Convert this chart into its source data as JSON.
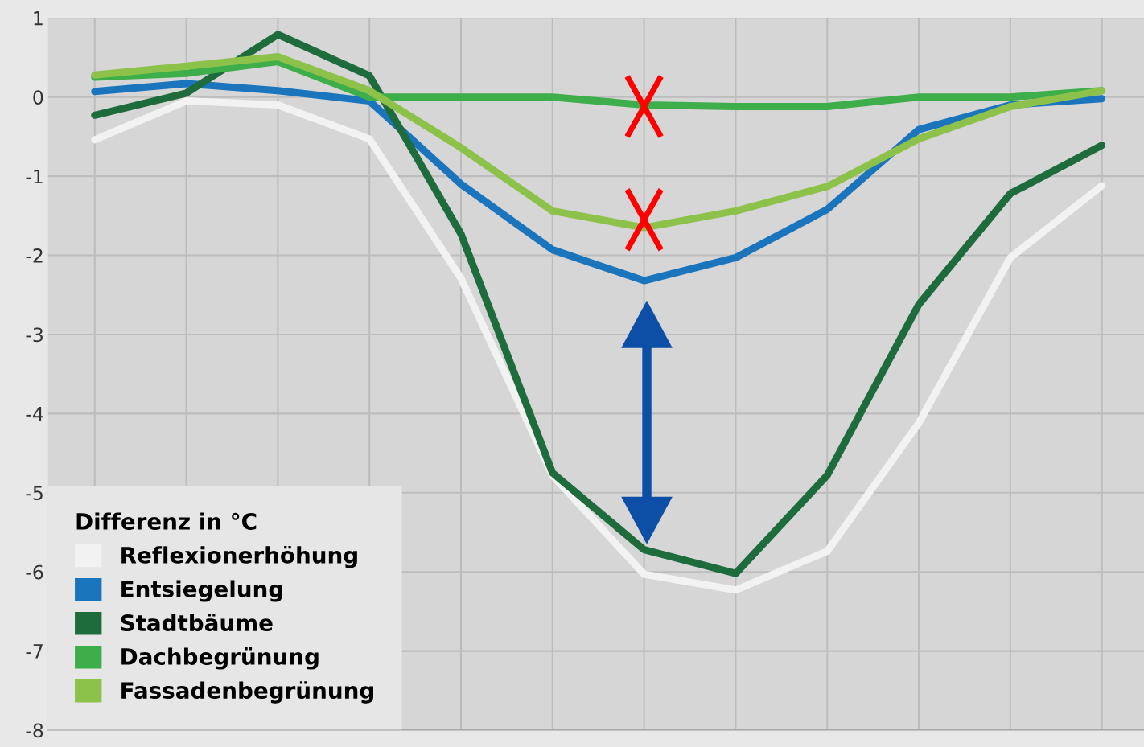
{
  "chart_data": {
    "type": "line",
    "legend_title": "Differenz in °C",
    "categories": [
      null,
      null,
      null,
      null,
      null,
      null,
      null,
      null,
      null,
      null,
      null,
      null
    ],
    "series": [
      {
        "name": "Reflexionerhöhung",
        "color": "#f2f2f2",
        "values": [
          -0.54,
          -0.05,
          -0.1,
          -0.53,
          -2.29,
          -4.78,
          -6.03,
          -6.23,
          -5.74,
          -4.12,
          -2.03,
          -1.12
        ]
      },
      {
        "name": "Entsiegelung",
        "color": "#1a75bc",
        "values": [
          0.07,
          0.17,
          0.08,
          -0.05,
          -1.1,
          -1.93,
          -2.32,
          -2.03,
          -1.42,
          -0.41,
          -0.1,
          -0.02
        ]
      },
      {
        "name": "Stadtbäume",
        "color": "#1e6b3c",
        "values": [
          -0.23,
          0.05,
          0.79,
          0.27,
          -1.73,
          -4.75,
          -5.72,
          -6.02,
          -4.78,
          -2.62,
          -1.22,
          -0.61
        ]
      },
      {
        "name": "Dachbegrünung",
        "color": "#3dae4a",
        "values": [
          0.25,
          0.3,
          0.45,
          0.0,
          0.0,
          0.0,
          -0.1,
          -0.12,
          -0.12,
          0.0,
          0.0,
          0.08
        ]
      },
      {
        "name": "Fassadenbegrünung",
        "color": "#8cc24a",
        "values": [
          0.28,
          0.39,
          0.51,
          0.08,
          -0.64,
          -1.44,
          -1.65,
          -1.44,
          -1.13,
          -0.53,
          -0.12,
          0.08
        ]
      }
    ],
    "ylim": [
      -8,
      1
    ],
    "yticks": [
      -8,
      -7,
      -6,
      -5,
      -4,
      -3,
      -2,
      -1,
      0,
      1
    ],
    "grid": true,
    "legend": "bottom left",
    "marker": "none",
    "line_style": "solid"
  }
}
